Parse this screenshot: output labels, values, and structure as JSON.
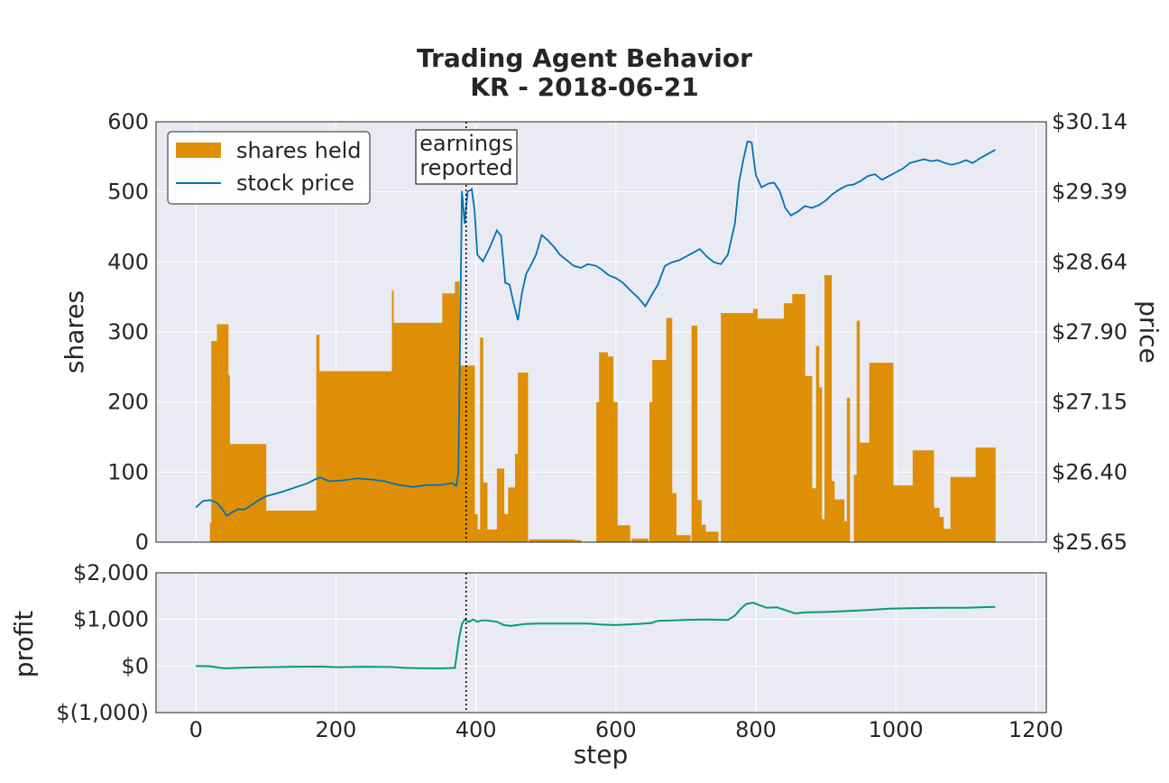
{
  "chart_data": {
    "type": "bar+line",
    "title": "Trading Agent Behavior",
    "subtitle": "KR - 2018-06-21",
    "top_panel": {
      "ylabel_left": "shares",
      "ylabel_right": "price",
      "ylim_left": [
        0,
        600
      ],
      "yticks_left": [
        "0",
        "100",
        "200",
        "300",
        "400",
        "500",
        "600"
      ],
      "ylim_right": [
        25.65,
        30.14
      ],
      "yticks_right": [
        "$25.65",
        "$26.40",
        "$27.15",
        "$27.90",
        "$28.64",
        "$29.39",
        "$30.14"
      ],
      "grid": true,
      "legend": {
        "placement": "top-left",
        "entries": [
          {
            "label": "shares held",
            "color": "#de8f05"
          },
          {
            "label": "stock price",
            "color": "#0173b2"
          }
        ]
      },
      "annotation": {
        "text": [
          "earnings",
          "reported"
        ],
        "x": 386
      },
      "shares_held": {
        "name": "shares held",
        "color": "#de8f05",
        "steps": [
          [
            0,
            0
          ],
          [
            20,
            28
          ],
          [
            22,
            287
          ],
          [
            30,
            311
          ],
          [
            46,
            238
          ],
          [
            48,
            140
          ],
          [
            100,
            45
          ],
          [
            168,
            45
          ],
          [
            172,
            296
          ],
          [
            176,
            244
          ],
          [
            280,
            359
          ],
          [
            282,
            313
          ],
          [
            352,
            355
          ],
          [
            370,
            372
          ],
          [
            376,
            252
          ],
          [
            398,
            40
          ],
          [
            402,
            18
          ],
          [
            406,
            292
          ],
          [
            410,
            85
          ],
          [
            416,
            18
          ],
          [
            430,
            105
          ],
          [
            440,
            40
          ],
          [
            446,
            78
          ],
          [
            456,
            126
          ],
          [
            460,
            242
          ],
          [
            474,
            0
          ],
          [
            476,
            4
          ],
          [
            540,
            3
          ],
          [
            550,
            0
          ],
          [
            570,
            0
          ],
          [
            572,
            200
          ],
          [
            576,
            271
          ],
          [
            588,
            265
          ],
          [
            596,
            200
          ],
          [
            602,
            24
          ],
          [
            620,
            0
          ],
          [
            622,
            5
          ],
          [
            646,
            0
          ],
          [
            648,
            200
          ],
          [
            652,
            260
          ],
          [
            672,
            320
          ],
          [
            680,
            70
          ],
          [
            686,
            10
          ],
          [
            706,
            0
          ],
          [
            708,
            309
          ],
          [
            716,
            60
          ],
          [
            722,
            25
          ],
          [
            728,
            15
          ],
          [
            746,
            0
          ],
          [
            750,
            327
          ],
          [
            796,
            333
          ],
          [
            802,
            319
          ],
          [
            840,
            341
          ],
          [
            852,
            354
          ],
          [
            870,
            237
          ],
          [
            880,
            77
          ],
          [
            886,
            280
          ],
          [
            890,
            221
          ],
          [
            894,
            33
          ],
          [
            898,
            381
          ],
          [
            908,
            87
          ],
          [
            912,
            61
          ],
          [
            926,
            30
          ],
          [
            930,
            206
          ],
          [
            934,
            0
          ],
          [
            940,
            96
          ],
          [
            944,
            316
          ],
          [
            948,
            142
          ],
          [
            962,
            256
          ],
          [
            996,
            81
          ],
          [
            1024,
            131
          ],
          [
            1054,
            49
          ],
          [
            1062,
            36
          ],
          [
            1068,
            19
          ],
          [
            1078,
            93
          ],
          [
            1114,
            135
          ],
          [
            1142,
            0
          ]
        ]
      },
      "stock_price": {
        "name": "stock price",
        "color": "#0173b2",
        "points": [
          [
            0,
            26.02
          ],
          [
            10,
            26.09
          ],
          [
            20,
            26.1
          ],
          [
            30,
            26.07
          ],
          [
            38,
            26.0
          ],
          [
            44,
            25.93
          ],
          [
            52,
            25.97
          ],
          [
            60,
            26.0
          ],
          [
            70,
            26.0
          ],
          [
            80,
            26.05
          ],
          [
            90,
            26.1
          ],
          [
            100,
            26.14
          ],
          [
            120,
            26.18
          ],
          [
            140,
            26.23
          ],
          [
            160,
            26.28
          ],
          [
            170,
            26.32
          ],
          [
            178,
            26.34
          ],
          [
            190,
            26.3
          ],
          [
            210,
            26.31
          ],
          [
            230,
            26.33
          ],
          [
            250,
            26.32
          ],
          [
            270,
            26.3
          ],
          [
            290,
            26.26
          ],
          [
            310,
            26.24
          ],
          [
            330,
            26.26
          ],
          [
            350,
            26.26
          ],
          [
            366,
            26.28
          ],
          [
            372,
            26.25
          ],
          [
            375,
            26.4
          ],
          [
            380,
            29.4
          ],
          [
            384,
            29.05
          ],
          [
            388,
            29.39
          ],
          [
            394,
            29.42
          ],
          [
            398,
            29.2
          ],
          [
            402,
            28.72
          ],
          [
            410,
            28.65
          ],
          [
            420,
            28.8
          ],
          [
            430,
            28.98
          ],
          [
            436,
            28.92
          ],
          [
            442,
            28.42
          ],
          [
            448,
            28.4
          ],
          [
            454,
            28.2
          ],
          [
            460,
            28.02
          ],
          [
            466,
            28.32
          ],
          [
            472,
            28.52
          ],
          [
            478,
            28.6
          ],
          [
            486,
            28.72
          ],
          [
            494,
            28.93
          ],
          [
            502,
            28.88
          ],
          [
            512,
            28.8
          ],
          [
            520,
            28.72
          ],
          [
            530,
            28.66
          ],
          [
            540,
            28.6
          ],
          [
            550,
            28.58
          ],
          [
            560,
            28.62
          ],
          [
            572,
            28.6
          ],
          [
            580,
            28.56
          ],
          [
            590,
            28.5
          ],
          [
            600,
            28.47
          ],
          [
            610,
            28.42
          ],
          [
            622,
            28.33
          ],
          [
            632,
            28.26
          ],
          [
            642,
            28.17
          ],
          [
            652,
            28.3
          ],
          [
            660,
            28.4
          ],
          [
            670,
            28.6
          ],
          [
            680,
            28.64
          ],
          [
            690,
            28.66
          ],
          [
            700,
            28.7
          ],
          [
            710,
            28.74
          ],
          [
            720,
            28.78
          ],
          [
            730,
            28.7
          ],
          [
            740,
            28.64
          ],
          [
            750,
            28.62
          ],
          [
            760,
            28.72
          ],
          [
            770,
            29.05
          ],
          [
            776,
            29.5
          ],
          [
            782,
            29.73
          ],
          [
            788,
            29.93
          ],
          [
            794,
            29.92
          ],
          [
            800,
            29.57
          ],
          [
            808,
            29.44
          ],
          [
            818,
            29.48
          ],
          [
            826,
            29.49
          ],
          [
            834,
            29.4
          ],
          [
            842,
            29.22
          ],
          [
            850,
            29.14
          ],
          [
            860,
            29.18
          ],
          [
            870,
            29.24
          ],
          [
            880,
            29.22
          ],
          [
            890,
            29.25
          ],
          [
            900,
            29.3
          ],
          [
            910,
            29.37
          ],
          [
            920,
            29.42
          ],
          [
            930,
            29.46
          ],
          [
            940,
            29.47
          ],
          [
            950,
            29.51
          ],
          [
            960,
            29.56
          ],
          [
            970,
            29.58
          ],
          [
            980,
            29.52
          ],
          [
            990,
            29.56
          ],
          [
            1000,
            29.6
          ],
          [
            1010,
            29.64
          ],
          [
            1020,
            29.7
          ],
          [
            1030,
            29.72
          ],
          [
            1040,
            29.74
          ],
          [
            1050,
            29.72
          ],
          [
            1060,
            29.73
          ],
          [
            1070,
            29.7
          ],
          [
            1080,
            29.68
          ],
          [
            1090,
            29.7
          ],
          [
            1100,
            29.73
          ],
          [
            1110,
            29.7
          ],
          [
            1120,
            29.75
          ],
          [
            1130,
            29.79
          ],
          [
            1142,
            29.84
          ]
        ]
      }
    },
    "bottom_panel": {
      "ylabel": "profit",
      "xlabel": "step",
      "ylim": [
        -1000,
        2000
      ],
      "yticks": [
        "$(1,000)",
        "$0",
        "$1,000",
        "$2,000"
      ],
      "xlim": [
        -57,
        1215
      ],
      "xticks": [
        "0",
        "200",
        "400",
        "600",
        "800",
        "1000",
        "1200"
      ],
      "grid": true,
      "profit": {
        "color": "#029e73",
        "points": [
          [
            0,
            0
          ],
          [
            20,
            -5
          ],
          [
            40,
            -50
          ],
          [
            60,
            -40
          ],
          [
            80,
            -30
          ],
          [
            100,
            -25
          ],
          [
            140,
            -15
          ],
          [
            180,
            -10
          ],
          [
            200,
            -25
          ],
          [
            240,
            -15
          ],
          [
            280,
            -20
          ],
          [
            300,
            -40
          ],
          [
            320,
            -45
          ],
          [
            350,
            -50
          ],
          [
            370,
            -40
          ],
          [
            376,
            600
          ],
          [
            380,
            900
          ],
          [
            384,
            1000
          ],
          [
            390,
            950
          ],
          [
            396,
            1000
          ],
          [
            402,
            950
          ],
          [
            408,
            980
          ],
          [
            416,
            980
          ],
          [
            430,
            950
          ],
          [
            440,
            880
          ],
          [
            450,
            860
          ],
          [
            470,
            900
          ],
          [
            490,
            910
          ],
          [
            520,
            910
          ],
          [
            560,
            910
          ],
          [
            580,
            890
          ],
          [
            600,
            880
          ],
          [
            630,
            900
          ],
          [
            650,
            920
          ],
          [
            660,
            970
          ],
          [
            680,
            980
          ],
          [
            700,
            990
          ],
          [
            730,
            1000
          ],
          [
            760,
            990
          ],
          [
            770,
            1080
          ],
          [
            778,
            1220
          ],
          [
            786,
            1330
          ],
          [
            796,
            1360
          ],
          [
            806,
            1300
          ],
          [
            816,
            1250
          ],
          [
            830,
            1260
          ],
          [
            842,
            1200
          ],
          [
            856,
            1130
          ],
          [
            870,
            1150
          ],
          [
            900,
            1160
          ],
          [
            930,
            1180
          ],
          [
            960,
            1200
          ],
          [
            990,
            1230
          ],
          [
            1020,
            1240
          ],
          [
            1060,
            1250
          ],
          [
            1100,
            1250
          ],
          [
            1142,
            1270
          ]
        ]
      },
      "annotation_x": 386
    }
  }
}
